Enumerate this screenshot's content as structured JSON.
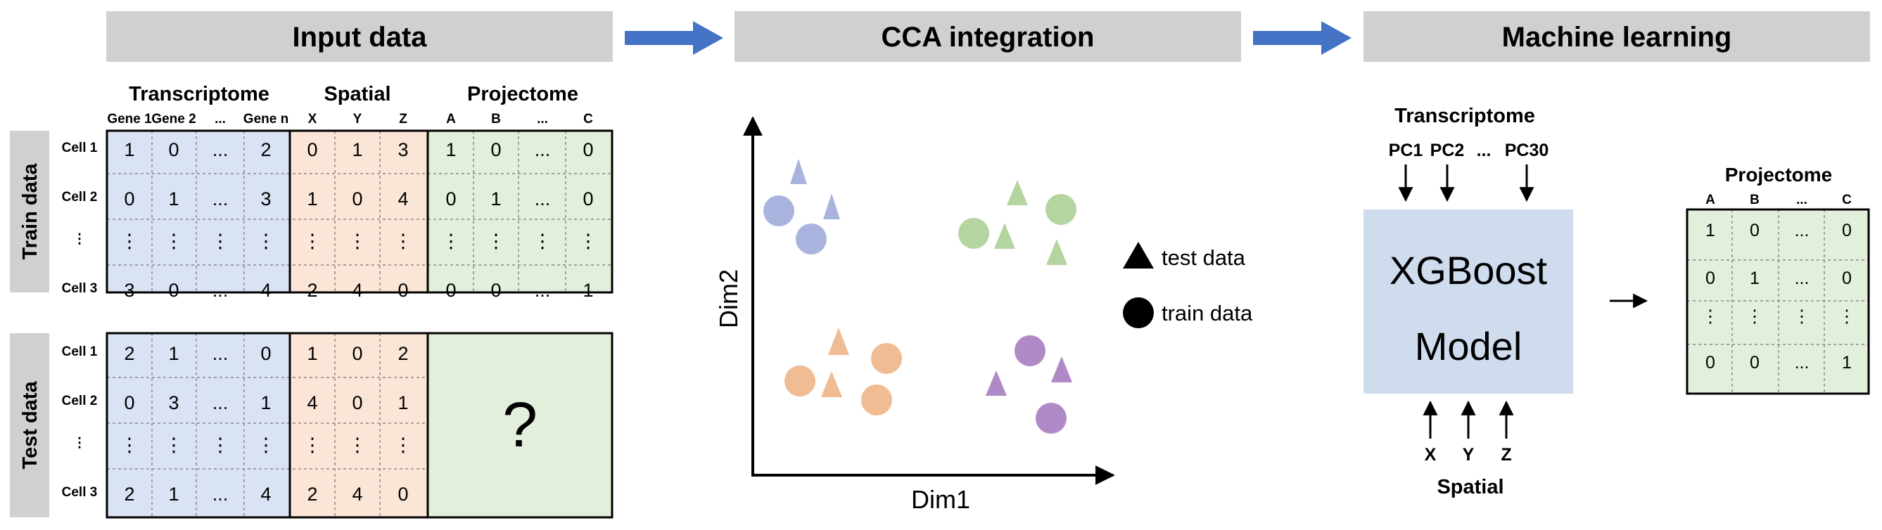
{
  "headers": [
    "Input data",
    "CCA integration",
    "Machine learning"
  ],
  "colors": {
    "header_bg": "#d0d0d0",
    "arrow": "#4472c4",
    "transcriptome_bg": "#dae3f3",
    "spatial_bg": "#fbe5d6",
    "projectome_bg": "#e2efda",
    "model_bg": "#cfdcee",
    "cluster_blue": "#a9b4de",
    "cluster_green": "#b5d5a0",
    "cluster_orange": "#f0bc94",
    "cluster_purple": "#b08ac6"
  },
  "input": {
    "group_labels": [
      "Transcriptome",
      "Spatial",
      "Projectome"
    ],
    "columns": [
      "Gene 1",
      "Gene 2",
      "...",
      "Gene n",
      "X",
      "Y",
      "Z",
      "A",
      "B",
      "...",
      "C"
    ],
    "train": {
      "side_label": "Train data",
      "row_labels": [
        "Cell 1",
        "Cell 2",
        "⋮",
        "Cell 3"
      ],
      "rows": [
        [
          "1",
          "0",
          "...",
          "2",
          "0",
          "1",
          "3",
          "1",
          "0",
          "...",
          "0"
        ],
        [
          "0",
          "1",
          "...",
          "3",
          "1",
          "0",
          "4",
          "0",
          "1",
          "...",
          "0"
        ],
        [
          "⋮",
          "⋮",
          "⋮",
          "⋮",
          "⋮",
          "⋮",
          "⋮",
          "⋮",
          "⋮",
          "⋮",
          "⋮"
        ],
        [
          "3",
          "0",
          "...",
          "4",
          "2",
          "4",
          "0",
          "0",
          "0",
          "...",
          "1"
        ]
      ]
    },
    "test": {
      "side_label": "Test data",
      "row_labels": [
        "Cell 1",
        "Cell 2",
        "⋮",
        "Cell 3"
      ],
      "rows": [
        [
          "2",
          "1",
          "...",
          "0",
          "1",
          "0",
          "2"
        ],
        [
          "0",
          "3",
          "...",
          "1",
          "4",
          "0",
          "1"
        ],
        [
          "⋮",
          "⋮",
          "⋮",
          "⋮",
          "⋮",
          "⋮",
          "⋮"
        ],
        [
          "2",
          "1",
          "...",
          "4",
          "2",
          "4",
          "0"
        ]
      ],
      "unknown": "?"
    }
  },
  "cca": {
    "x_label": "Dim1",
    "y_label": "Dim2",
    "legend": [
      "test data",
      "train data"
    ]
  },
  "ml": {
    "top_label": "Transcriptome",
    "top_inputs": [
      "PC1",
      "PC2",
      "...",
      "PC30"
    ],
    "model_lines": [
      "XGBoost",
      "Model"
    ],
    "bottom_inputs": [
      "X",
      "Y",
      "Z"
    ],
    "bottom_label": "Spatial",
    "output_title": "Projectome",
    "output_columns": [
      "A",
      "B",
      "...",
      "C"
    ],
    "output_rows": [
      [
        "1",
        "0",
        "...",
        "0"
      ],
      [
        "0",
        "1",
        "...",
        "0"
      ],
      [
        "⋮",
        "⋮",
        "⋮",
        "⋮"
      ],
      [
        "0",
        "0",
        "...",
        "1"
      ]
    ]
  }
}
